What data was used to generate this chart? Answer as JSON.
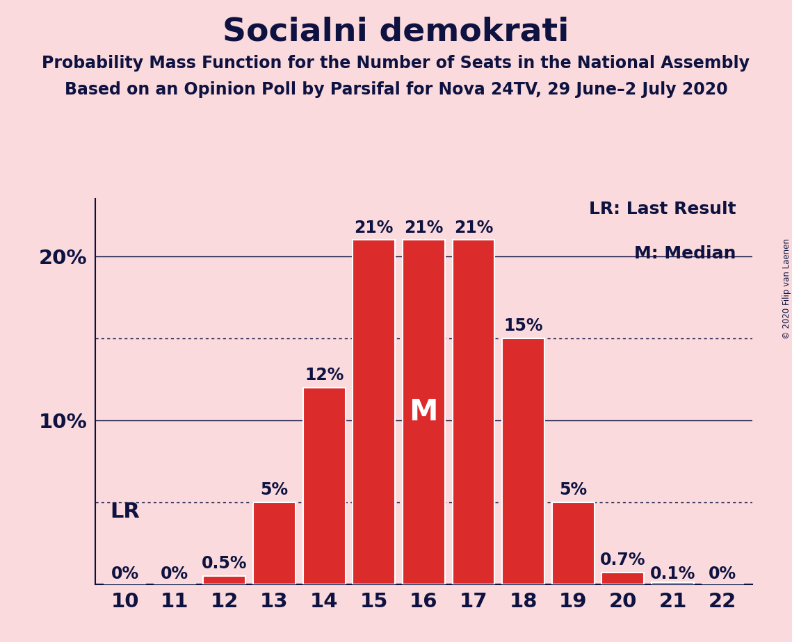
{
  "title": "Socialni demokrati",
  "subtitle1": "Probability Mass Function for the Number of Seats in the National Assembly",
  "subtitle2": "Based on an Opinion Poll by Parsifal for Nova 24TV, 29 June–2 July 2020",
  "copyright": "© 2020 Filip van Laenen",
  "seats": [
    10,
    11,
    12,
    13,
    14,
    15,
    16,
    17,
    18,
    19,
    20,
    21,
    22
  ],
  "probabilities": [
    0.0,
    0.0,
    0.5,
    5.0,
    12.0,
    21.0,
    21.0,
    21.0,
    15.0,
    5.0,
    0.7,
    0.1,
    0.0
  ],
  "bar_color": "#DC2B2B",
  "background_color": "#FADADD",
  "text_color": "#0D1240",
  "bar_edge_color": "#FFFFFF",
  "median_seat": 16,
  "ylim": [
    0,
    23.5
  ],
  "dotted_lines": [
    5.0,
    15.0
  ],
  "solid_lines": [
    10.0,
    20.0
  ],
  "legend_lr": "LR: Last Result",
  "legend_m": "M: Median",
  "bar_labels": [
    "0%",
    "0%",
    "0.5%",
    "5%",
    "12%",
    "21%",
    "21%",
    "21%",
    "15%",
    "5%",
    "0.7%",
    "0.1%",
    "0%"
  ],
  "title_fontsize": 34,
  "subtitle_fontsize": 17,
  "axis_fontsize": 21,
  "bar_label_fontsize": 17,
  "legend_fontsize": 18,
  "lr_label_fontsize": 22
}
